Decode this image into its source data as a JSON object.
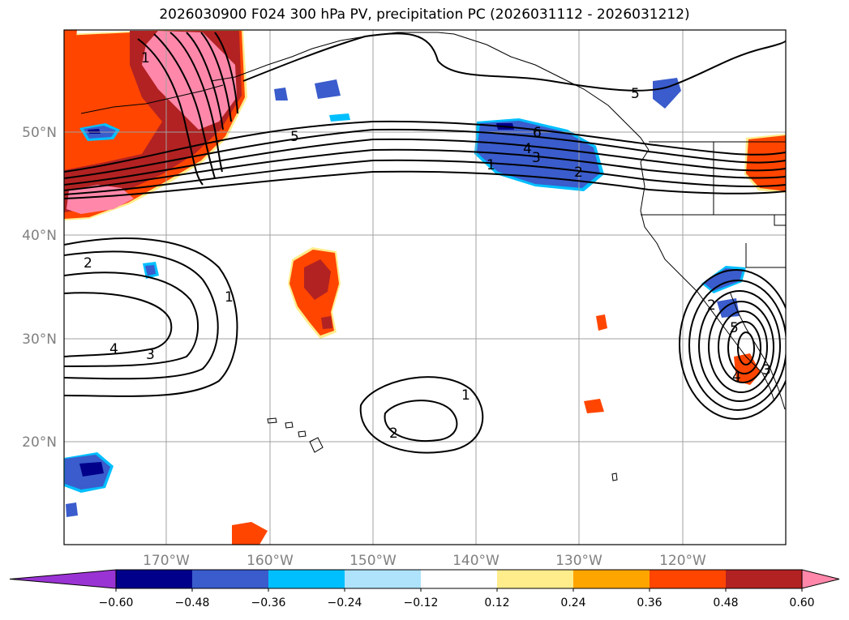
{
  "title": "2026030900 F024 300 hPa PV, precipitation PC (2026031112 - 2026031212)",
  "map": {
    "lon_labels": [
      "170°W",
      "160°W",
      "150°W",
      "140°W",
      "130°W",
      "120°W"
    ],
    "lat_labels": [
      "50°N",
      "40°N",
      "30°N",
      "20°N"
    ],
    "contour_labels": [
      {
        "text": "1"
      },
      {
        "text": "5"
      },
      {
        "text": "6"
      },
      {
        "text": "4"
      },
      {
        "text": "3"
      },
      {
        "text": "1"
      },
      {
        "text": "2"
      },
      {
        "text": "5"
      },
      {
        "text": "2"
      },
      {
        "text": "1"
      },
      {
        "text": "4"
      },
      {
        "text": "3"
      },
      {
        "text": "1"
      },
      {
        "text": "2"
      },
      {
        "text": "2"
      },
      {
        "text": "5"
      },
      {
        "text": "4"
      },
      {
        "text": "3"
      }
    ],
    "colors": {
      "neg_extreme": "#9a33d4",
      "neg_060": "#00008b",
      "neg_048": "#3a5ccc",
      "neg_036": "#00bfff",
      "neg_024": "#aee3fb",
      "neutral": "#ffffff",
      "pos_012": "#ffec8b",
      "pos_024": "#ffa500",
      "pos_036": "#ff4500",
      "pos_048": "#b22222",
      "pos_060": "#ff88aa"
    }
  },
  "colorbar": {
    "ticks": [
      "−0.60",
      "−0.48",
      "−0.36",
      "−0.24",
      "−0.12",
      "0.12",
      "0.24",
      "0.36",
      "0.48",
      "0.60"
    ],
    "colors": [
      "#9a33d4",
      "#00008b",
      "#3a5ccc",
      "#00bfff",
      "#aee3fb",
      "#ffffff",
      "#ffec8b",
      "#ffa500",
      "#ff4500",
      "#b22222",
      "#ff88aa"
    ]
  }
}
